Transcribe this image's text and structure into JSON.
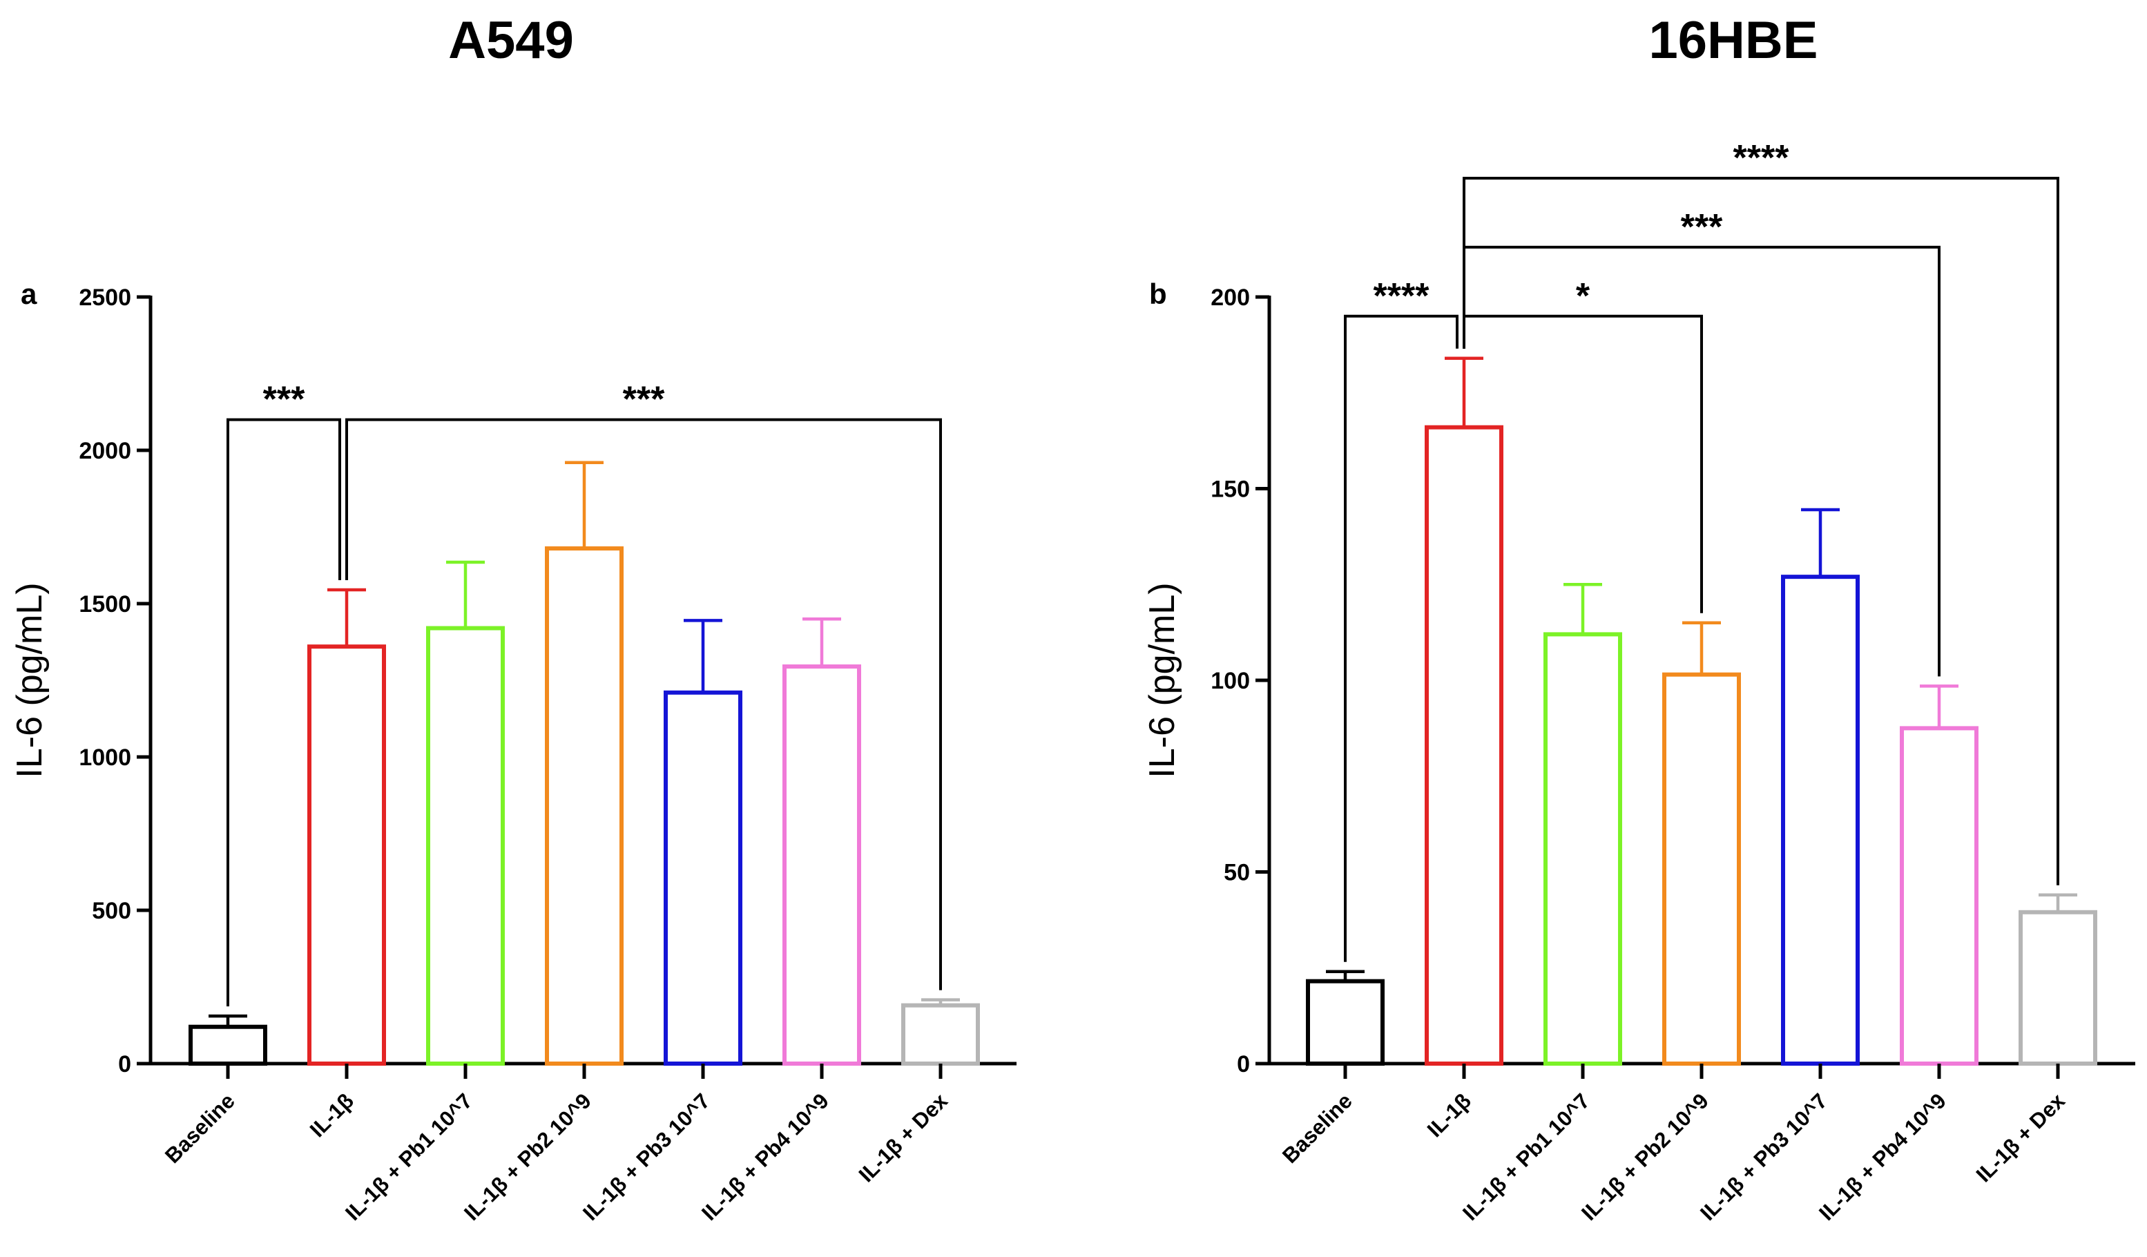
{
  "chart_data": [
    {
      "type": "bar",
      "title": "A549",
      "panel_label": "a",
      "xlabel": "",
      "ylabel": "IL-6 (pg/mL)",
      "ylim": [
        0,
        2500
      ],
      "yticks": [
        0,
        500,
        1000,
        1500,
        2000,
        2500
      ],
      "grid": false,
      "categories": [
        "Baseline",
        "IL-1β",
        "IL-1β + Pb1 10^7",
        "IL-1β + Pb2 10^9",
        "IL-1β + Pb3 10^7",
        "IL-1β + Pb4 10^9",
        "IL-1β + Dex"
      ],
      "values": [
        120,
        1360,
        1420,
        1680,
        1210,
        1295,
        190
      ],
      "errors": [
        35,
        185,
        215,
        280,
        235,
        155,
        18
      ],
      "colors": [
        "#000000",
        "#e32424",
        "#7cf227",
        "#f28a1d",
        "#1414d6",
        "#f07ad8",
        "#b5b5b5"
      ],
      "significance": [
        {
          "from": 0,
          "to": 1,
          "label": "***",
          "y": 2100,
          "apex": 1
        },
        {
          "from": 1,
          "to": 6,
          "label": "***",
          "y": 2100,
          "apex": 0
        }
      ]
    },
    {
      "type": "bar",
      "title": "16HBE",
      "panel_label": "b",
      "xlabel": "",
      "ylabel": "IL-6 (pg/mL)",
      "ylim": [
        0,
        200
      ],
      "yticks": [
        0,
        50,
        100,
        150,
        200
      ],
      "grid": false,
      "categories": [
        "Baseline",
        "IL-1β",
        "IL-1β + Pb1 10^7",
        "IL-1β + Pb2 10^9",
        "IL-1β + Pb3 10^7",
        "IL-1β + Pb4 10^9",
        "IL-1β + Dex"
      ],
      "values": [
        21.5,
        166,
        112,
        101.5,
        127,
        87.5,
        39.5
      ],
      "errors": [
        2.5,
        18,
        13,
        13.5,
        17.5,
        11,
        4.5
      ],
      "colors": [
        "#000000",
        "#e32424",
        "#7cf227",
        "#f28a1d",
        "#1414d6",
        "#f07ad8",
        "#b5b5b5"
      ],
      "significance": [
        {
          "from": 0,
          "to": 1,
          "label": "****",
          "y": 195,
          "apex": 1
        },
        {
          "from": 1,
          "to": 3,
          "label": "*",
          "y": 195,
          "apex": 0
        },
        {
          "from": 1,
          "to": 5,
          "label": "***",
          "y": 213,
          "apex": 0
        },
        {
          "from": 1,
          "to": 6,
          "label": "****",
          "y": 231,
          "apex": 0
        }
      ]
    }
  ]
}
